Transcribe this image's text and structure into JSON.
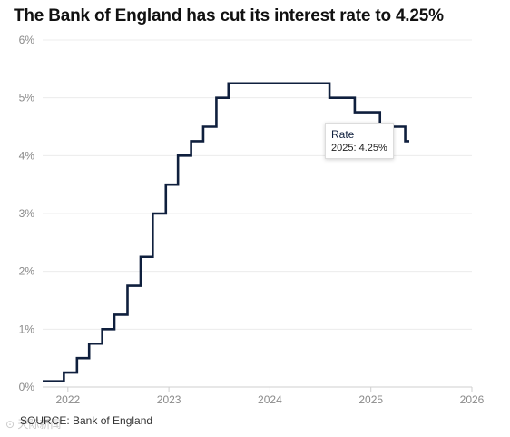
{
  "chart_data": {
    "type": "line",
    "step": true,
    "title": "The Bank of England has cut its interest rate to 4.25%",
    "source": "SOURCE: Bank of England",
    "watermark": "⊙ 天际新闻",
    "line_color": "#0f1f3d",
    "grid": true,
    "xlim": [
      2021.75,
      2026.0
    ],
    "ylim": [
      0,
      6
    ],
    "x_ticks": [
      2022,
      2023,
      2024,
      2025,
      2026
    ],
    "x_tick_labels": [
      "2022",
      "2023",
      "2024",
      "2025",
      "2026"
    ],
    "y_ticks": [
      0,
      1,
      2,
      3,
      4,
      5,
      6
    ],
    "y_tick_labels": [
      "0%",
      "1%",
      "2%",
      "3%",
      "4%",
      "5%",
      "6%"
    ],
    "series": [
      {
        "name": "Rate",
        "x": [
          2021.75,
          2021.96,
          2022.09,
          2022.21,
          2022.34,
          2022.46,
          2022.59,
          2022.72,
          2022.84,
          2022.97,
          2023.09,
          2023.22,
          2023.34,
          2023.47,
          2023.59,
          2024.59,
          2024.84,
          2025.09,
          2025.34
        ],
        "values": [
          0.1,
          0.25,
          0.5,
          0.75,
          1.0,
          1.25,
          1.75,
          2.25,
          3.0,
          3.5,
          4.0,
          4.25,
          4.5,
          5.0,
          5.25,
          5.0,
          4.75,
          4.5,
          4.25
        ],
        "end_x": 2025.38
      }
    ],
    "tooltip": {
      "title": "Rate",
      "value": "2025: 4.25%"
    }
  }
}
